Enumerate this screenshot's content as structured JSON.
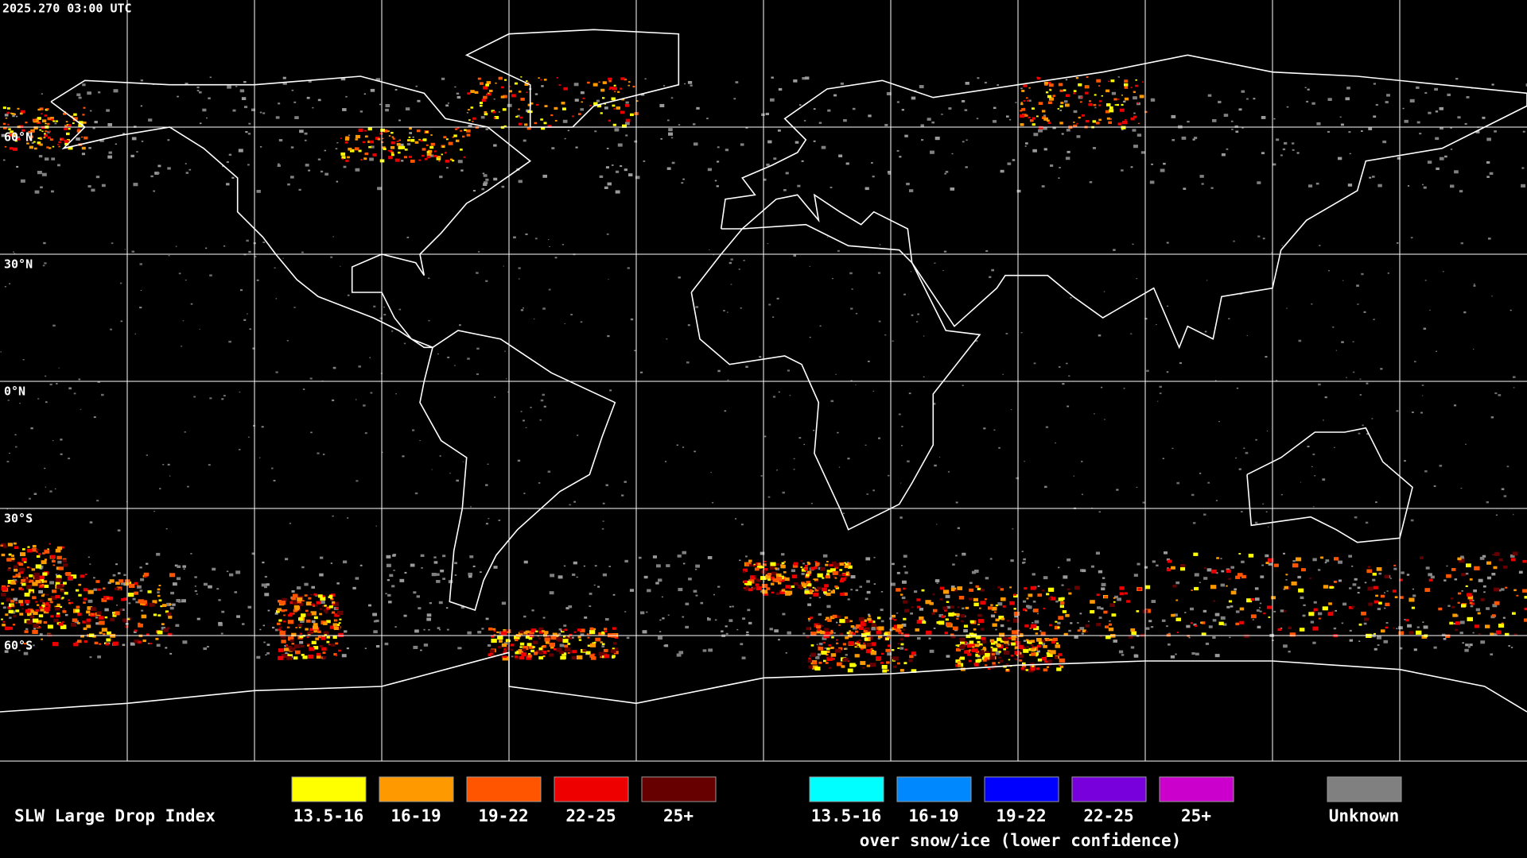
{
  "header": {
    "timestamp": "2025.270 03:00 UTC"
  },
  "map": {
    "latitude_labels": [
      "60°N",
      "30°N",
      "0°N",
      "30°S",
      "60°S"
    ]
  },
  "legend": {
    "title": "SLW Large Drop Index",
    "items": [
      {
        "label": "13.5-16",
        "color": "#ffff00"
      },
      {
        "label": "16-19",
        "color": "#ff9900"
      },
      {
        "label": "19-22",
        "color": "#ff5500"
      },
      {
        "label": "22-25",
        "color": "#ee0000"
      },
      {
        "label": "25+",
        "color": "#660000"
      }
    ],
    "snow_ice_items": [
      {
        "label": "13.5-16",
        "color": "#00ffff"
      },
      {
        "label": "16-19",
        "color": "#0088ff"
      },
      {
        "label": "19-22",
        "color": "#0000ff"
      },
      {
        "label": "22-25",
        "color": "#7700dd"
      },
      {
        "label": "25+",
        "color": "#cc00cc"
      }
    ],
    "snow_ice_caption": "over snow/ice (lower confidence)",
    "unknown": {
      "label": "Unknown",
      "color": "#808080"
    }
  }
}
